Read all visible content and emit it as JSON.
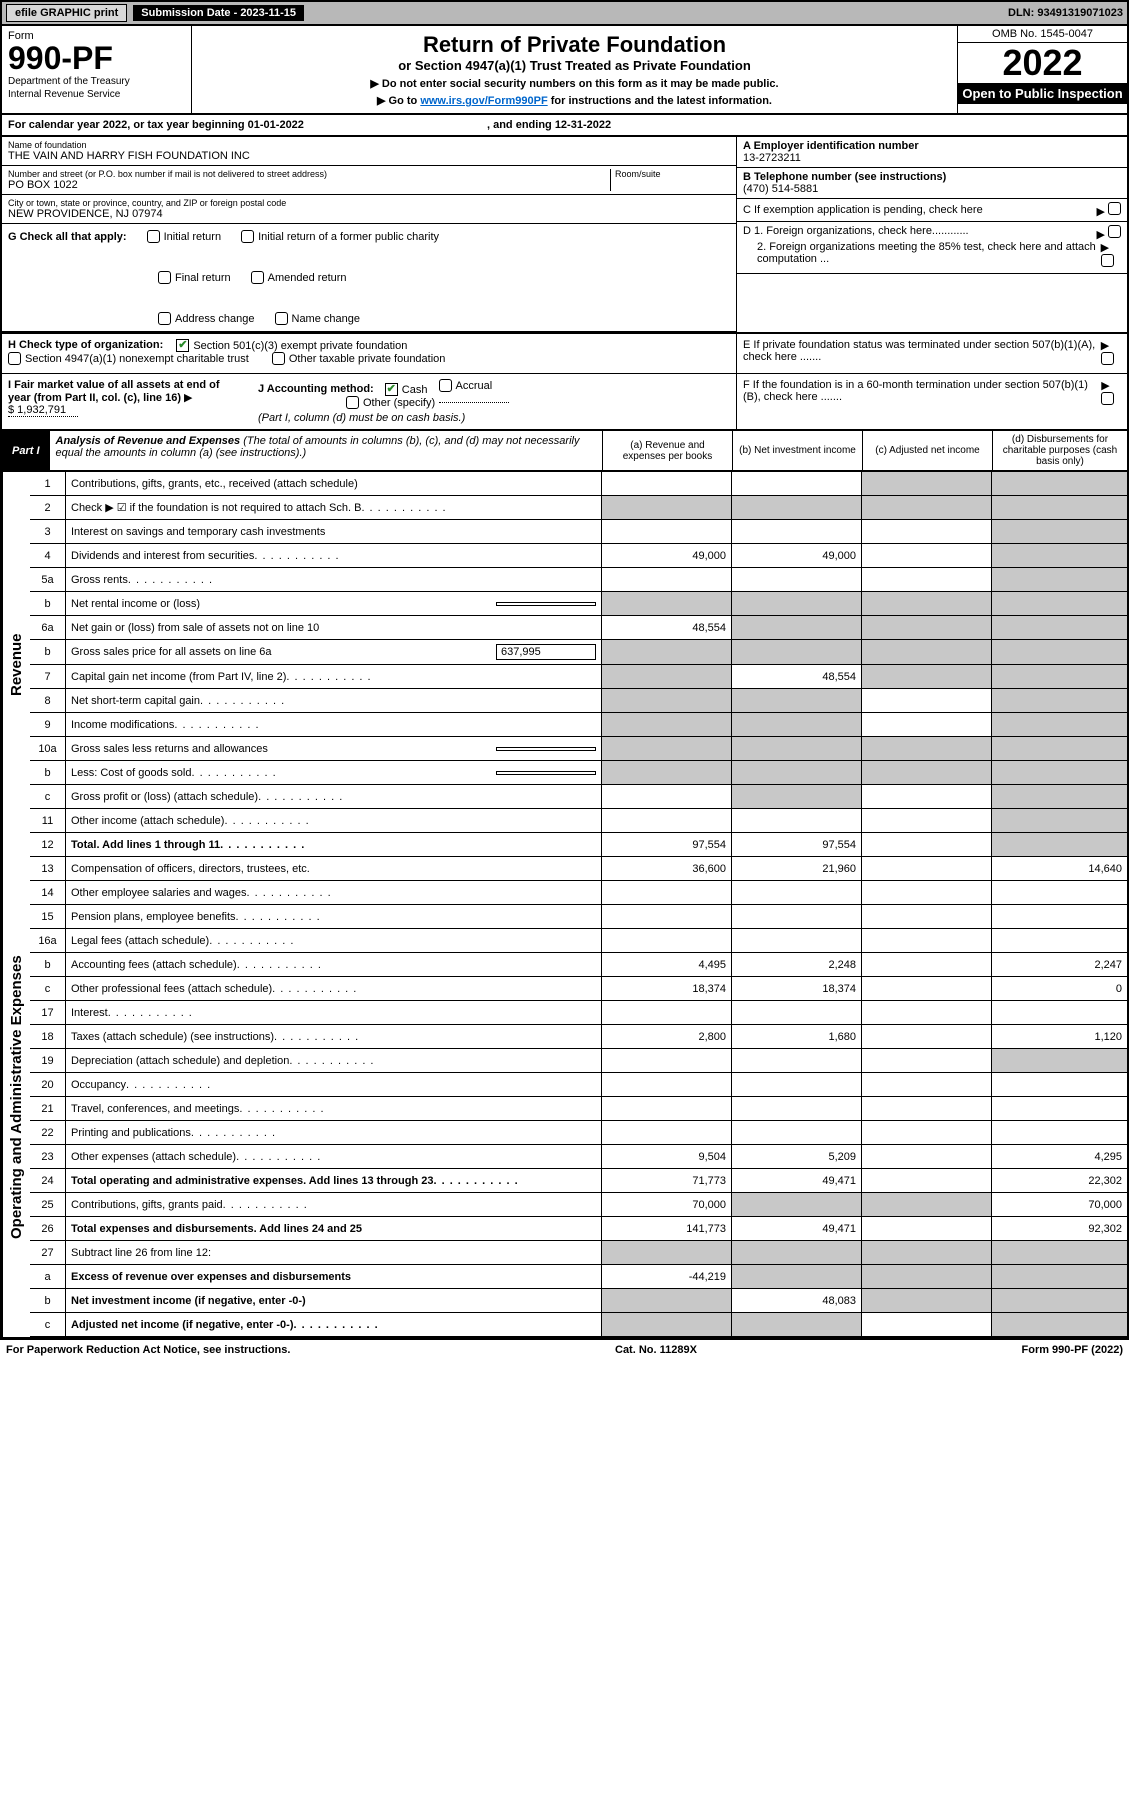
{
  "topbar": {
    "efile": "efile GRAPHIC print",
    "submission": "Submission Date - 2023-11-15",
    "dln": "DLN: 93491319071023"
  },
  "header": {
    "form_label": "Form",
    "form_no": "990-PF",
    "dept": "Department of the Treasury",
    "irs": "Internal Revenue Service",
    "title": "Return of Private Foundation",
    "subtitle": "or Section 4947(a)(1) Trust Treated as Private Foundation",
    "note1": "▶ Do not enter social security numbers on this form as it may be made public.",
    "note2_pre": "▶ Go to ",
    "note2_link": "www.irs.gov/Form990PF",
    "note2_post": " for instructions and the latest information.",
    "omb": "OMB No. 1545-0047",
    "year": "2022",
    "open": "Open to Public Inspection"
  },
  "calyear": {
    "text": "For calendar year 2022, or tax year beginning 01-01-2022",
    "end": ", and ending 12-31-2022"
  },
  "entity": {
    "name_label": "Name of foundation",
    "name": "THE VAIN AND HARRY FISH FOUNDATION INC",
    "addr_label": "Number and street (or P.O. box number if mail is not delivered to street address)",
    "addr": "PO BOX 1022",
    "room_label": "Room/suite",
    "city_label": "City or town, state or province, country, and ZIP or foreign postal code",
    "city": "NEW PROVIDENCE, NJ  07974",
    "ein_label": "A Employer identification number",
    "ein": "13-2723211",
    "phone_label": "B Telephone number (see instructions)",
    "phone": "(470) 514-5881",
    "c_label": "C If exemption application is pending, check here",
    "d1": "D 1. Foreign organizations, check here............",
    "d2": "2. Foreign organizations meeting the 85% test, check here and attach computation ...",
    "e": "E  If private foundation status was terminated under section 507(b)(1)(A), check here .......",
    "f": "F  If the foundation is in a 60-month termination under section 507(b)(1)(B), check here .......",
    "g_label": "G Check all that apply:",
    "g_opts": [
      "Initial return",
      "Final return",
      "Address change",
      "Initial return of a former public charity",
      "Amended return",
      "Name change"
    ],
    "h_label": "H Check type of organization:",
    "h_opt1": "Section 501(c)(3) exempt private foundation",
    "h_opt2": "Section 4947(a)(1) nonexempt charitable trust",
    "h_opt3": "Other taxable private foundation",
    "i_label": "I Fair market value of all assets at end of year (from Part II, col. (c), line 16)",
    "i_val": "$  1,932,791",
    "j_label": "J Accounting method:",
    "j_cash": "Cash",
    "j_accrual": "Accrual",
    "j_other": "Other (specify)",
    "j_note": "(Part I, column (d) must be on cash basis.)"
  },
  "part1": {
    "tag": "Part I",
    "title": "Analysis of Revenue and Expenses",
    "note": " (The total of amounts in columns (b), (c), and (d) may not necessarily equal the amounts in column (a) (see instructions).)",
    "col_a": "(a)   Revenue and expenses per books",
    "col_b": "(b)   Net investment income",
    "col_c": "(c)   Adjusted net income",
    "col_d": "(d)   Disbursements for charitable purposes (cash basis only)"
  },
  "revenue_label": "Revenue",
  "expense_label": "Operating and Administrative Expenses",
  "rows": [
    {
      "n": "1",
      "d": "Contributions, gifts, grants, etc., received (attach schedule)",
      "a": "",
      "b": "",
      "c": "S",
      "dd": "S"
    },
    {
      "n": "2",
      "d": "Check ▶ ☑ if the foundation is not required to attach Sch. B",
      "dots": 1,
      "a": "S",
      "b": "S",
      "c": "S",
      "dd": "S"
    },
    {
      "n": "3",
      "d": "Interest on savings and temporary cash investments",
      "a": "",
      "b": "",
      "c": "",
      "dd": "S"
    },
    {
      "n": "4",
      "d": "Dividends and interest from securities",
      "dots": 1,
      "a": "49,000",
      "b": "49,000",
      "c": "",
      "dd": "S"
    },
    {
      "n": "5a",
      "d": "Gross rents",
      "dots": 1,
      "a": "",
      "b": "",
      "c": "",
      "dd": "S"
    },
    {
      "n": "b",
      "d": "Net rental income or (loss)",
      "box": "",
      "a": "S",
      "b": "S",
      "c": "S",
      "dd": "S"
    },
    {
      "n": "6a",
      "d": "Net gain or (loss) from sale of assets not on line 10",
      "a": "48,554",
      "b": "S",
      "c": "S",
      "dd": "S"
    },
    {
      "n": "b",
      "d": "Gross sales price for all assets on line 6a",
      "box": "637,995",
      "a": "S",
      "b": "S",
      "c": "S",
      "dd": "S"
    },
    {
      "n": "7",
      "d": "Capital gain net income (from Part IV, line 2)",
      "dots": 1,
      "a": "S",
      "b": "48,554",
      "c": "S",
      "dd": "S"
    },
    {
      "n": "8",
      "d": "Net short-term capital gain",
      "dots": 1,
      "a": "S",
      "b": "S",
      "c": "",
      "dd": "S"
    },
    {
      "n": "9",
      "d": "Income modifications",
      "dots": 1,
      "a": "S",
      "b": "S",
      "c": "",
      "dd": "S"
    },
    {
      "n": "10a",
      "d": "Gross sales less returns and allowances",
      "box": "",
      "a": "S",
      "b": "S",
      "c": "S",
      "dd": "S"
    },
    {
      "n": "b",
      "d": "Less: Cost of goods sold",
      "dots": 1,
      "box": "",
      "a": "S",
      "b": "S",
      "c": "S",
      "dd": "S"
    },
    {
      "n": "c",
      "d": "Gross profit or (loss) (attach schedule)",
      "dots": 1,
      "a": "",
      "b": "S",
      "c": "",
      "dd": "S"
    },
    {
      "n": "11",
      "d": "Other income (attach schedule)",
      "dots": 1,
      "a": "",
      "b": "",
      "c": "",
      "dd": "S"
    },
    {
      "n": "12",
      "d": "Total. Add lines 1 through 11",
      "dots": 1,
      "bold": 1,
      "a": "97,554",
      "b": "97,554",
      "c": "",
      "dd": "S"
    },
    {
      "n": "13",
      "d": "Compensation of officers, directors, trustees, etc.",
      "a": "36,600",
      "b": "21,960",
      "c": "",
      "dd": "14,640"
    },
    {
      "n": "14",
      "d": "Other employee salaries and wages",
      "dots": 1,
      "a": "",
      "b": "",
      "c": "",
      "dd": ""
    },
    {
      "n": "15",
      "d": "Pension plans, employee benefits",
      "dots": 1,
      "a": "",
      "b": "",
      "c": "",
      "dd": ""
    },
    {
      "n": "16a",
      "d": "Legal fees (attach schedule)",
      "dots": 1,
      "a": "",
      "b": "",
      "c": "",
      "dd": ""
    },
    {
      "n": "b",
      "d": "Accounting fees (attach schedule)",
      "dots": 1,
      "a": "4,495",
      "b": "2,248",
      "c": "",
      "dd": "2,247"
    },
    {
      "n": "c",
      "d": "Other professional fees (attach schedule)",
      "dots": 1,
      "a": "18,374",
      "b": "18,374",
      "c": "",
      "dd": "0"
    },
    {
      "n": "17",
      "d": "Interest",
      "dots": 1,
      "a": "",
      "b": "",
      "c": "",
      "dd": ""
    },
    {
      "n": "18",
      "d": "Taxes (attach schedule) (see instructions)",
      "dots": 1,
      "a": "2,800",
      "b": "1,680",
      "c": "",
      "dd": "1,120"
    },
    {
      "n": "19",
      "d": "Depreciation (attach schedule) and depletion",
      "dots": 1,
      "a": "",
      "b": "",
      "c": "",
      "dd": "S"
    },
    {
      "n": "20",
      "d": "Occupancy",
      "dots": 1,
      "a": "",
      "b": "",
      "c": "",
      "dd": ""
    },
    {
      "n": "21",
      "d": "Travel, conferences, and meetings",
      "dots": 1,
      "a": "",
      "b": "",
      "c": "",
      "dd": ""
    },
    {
      "n": "22",
      "d": "Printing and publications",
      "dots": 1,
      "a": "",
      "b": "",
      "c": "",
      "dd": ""
    },
    {
      "n": "23",
      "d": "Other expenses (attach schedule)",
      "dots": 1,
      "a": "9,504",
      "b": "5,209",
      "c": "",
      "dd": "4,295"
    },
    {
      "n": "24",
      "d": "Total operating and administrative expenses. Add lines 13 through 23",
      "dots": 1,
      "bold": 1,
      "a": "71,773",
      "b": "49,471",
      "c": "",
      "dd": "22,302"
    },
    {
      "n": "25",
      "d": "Contributions, gifts, grants paid",
      "dots": 1,
      "a": "70,000",
      "b": "S",
      "c": "S",
      "dd": "70,000"
    },
    {
      "n": "26",
      "d": "Total expenses and disbursements. Add lines 24 and 25",
      "bold": 1,
      "a": "141,773",
      "b": "49,471",
      "c": "",
      "dd": "92,302"
    },
    {
      "n": "27",
      "d": "Subtract line 26 from line 12:",
      "a": "S",
      "b": "S",
      "c": "S",
      "dd": "S"
    },
    {
      "n": "a",
      "d": "Excess of revenue over expenses and disbursements",
      "bold": 1,
      "a": "-44,219",
      "b": "S",
      "c": "S",
      "dd": "S"
    },
    {
      "n": "b",
      "d": "Net investment income (if negative, enter -0-)",
      "bold": 1,
      "a": "S",
      "b": "48,083",
      "c": "S",
      "dd": "S"
    },
    {
      "n": "c",
      "d": "Adjusted net income (if negative, enter -0-)",
      "dots": 1,
      "bold": 1,
      "a": "S",
      "b": "S",
      "c": "",
      "dd": "S"
    }
  ],
  "footer": {
    "left": "For Paperwork Reduction Act Notice, see instructions.",
    "mid": "Cat. No. 11289X",
    "right": "Form 990-PF (2022)"
  }
}
